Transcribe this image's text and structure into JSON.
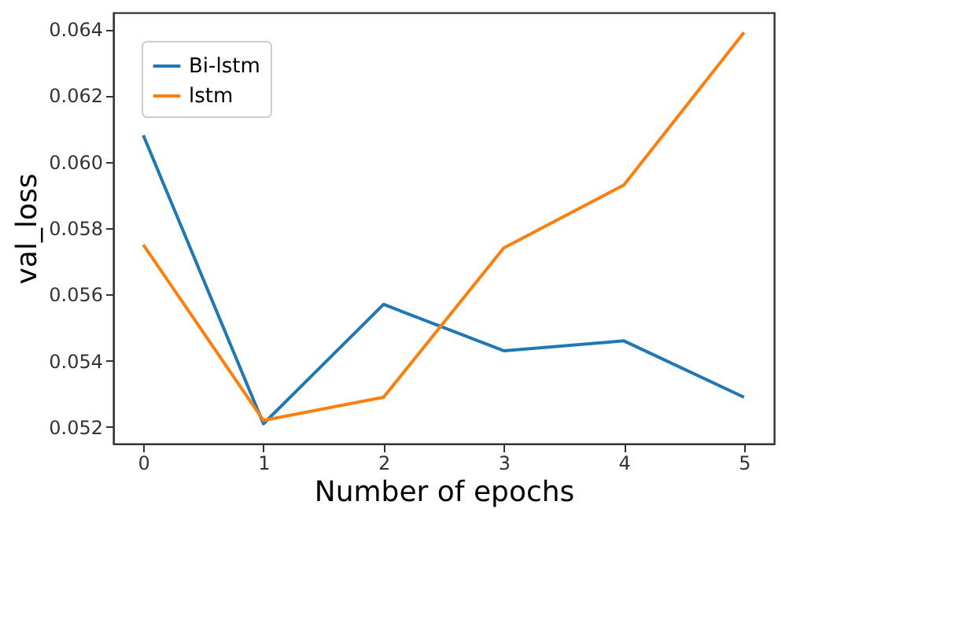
{
  "chart_data": {
    "type": "line",
    "xlabel": "Number of epochs",
    "ylabel": "val_loss",
    "x": [
      0,
      1,
      2,
      3,
      4,
      5
    ],
    "series": [
      {
        "name": "Bi-lstm",
        "color": "#1f77b4",
        "values": [
          0.0608,
          0.0521,
          0.0557,
          0.0543,
          0.0546,
          0.0529
        ]
      },
      {
        "name": "lstm",
        "color": "#ff7f0e",
        "values": [
          0.0575,
          0.0522,
          0.0529,
          0.0574,
          0.0593,
          0.0639
        ]
      }
    ],
    "xlim": [
      -0.25,
      5.25
    ],
    "xticks": [
      0,
      1,
      2,
      3,
      4,
      5
    ],
    "ylim": [
      0.0515,
      0.0645
    ],
    "yticks": [
      0.052,
      0.054,
      0.056,
      0.058,
      {
        "value": 0.06,
        "label": "0.060"
      },
      0.062,
      0.064
    ],
    "legend": "top left",
    "grid": false,
    "marker": "none",
    "line_style": "solid"
  }
}
